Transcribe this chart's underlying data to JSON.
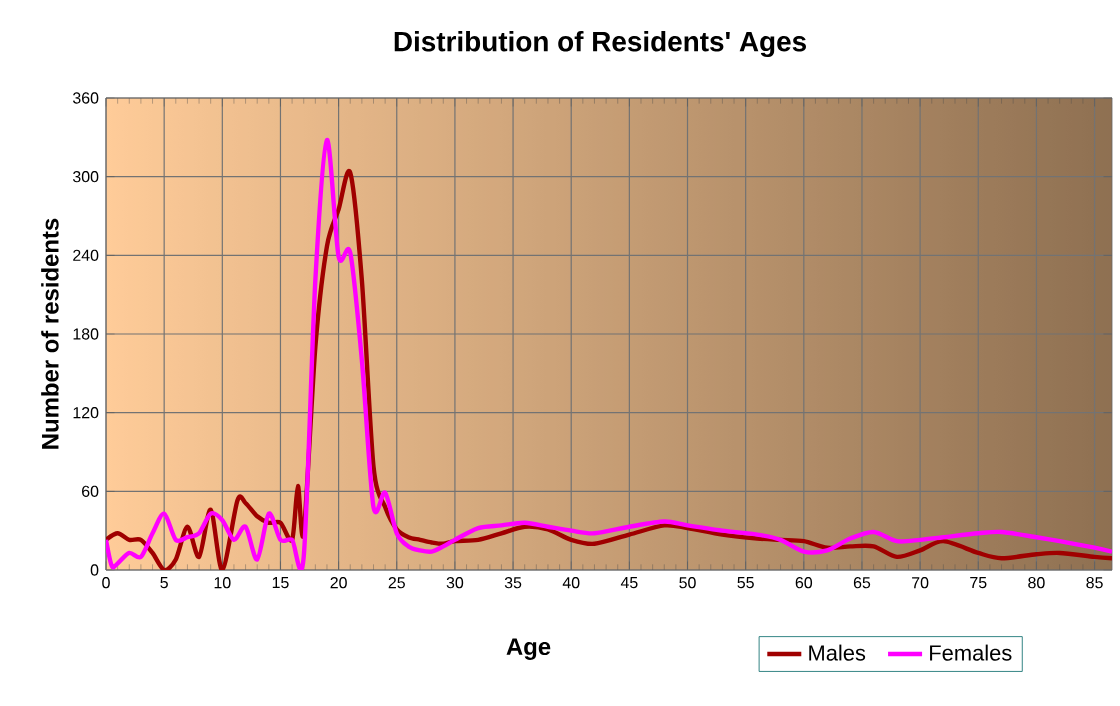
{
  "chart_data": {
    "type": "line",
    "title": "Distribution of Residents' Ages",
    "xlabel": "Age",
    "ylabel": "Number of residents",
    "xlim": [
      0,
      86.5
    ],
    "ylim": [
      0,
      360
    ],
    "xticks": [
      0,
      5,
      10,
      15,
      20,
      25,
      30,
      35,
      40,
      45,
      50,
      55,
      60,
      65,
      70,
      75,
      80,
      85
    ],
    "yticks": [
      0,
      60,
      120,
      180,
      240,
      300,
      360
    ],
    "grid": true,
    "legend": "bottom right",
    "series": [
      {
        "name": "Males",
        "color": "#a00000",
        "x": [
          0,
          1,
          2,
          3,
          4,
          5,
          6,
          7,
          8,
          9,
          10,
          11.3,
          12,
          13,
          14,
          15,
          16,
          16.5,
          17,
          18,
          19,
          20,
          21,
          22,
          23,
          24,
          25,
          26,
          27,
          28,
          29,
          30,
          32,
          34,
          36,
          38,
          40,
          42,
          45,
          48,
          50,
          53,
          56,
          58,
          60,
          62,
          64,
          66,
          68,
          70,
          72,
          75,
          77,
          80,
          82,
          85,
          86.5
        ],
        "values": [
          23,
          28,
          23,
          23,
          13,
          0,
          8,
          33,
          10,
          46,
          0,
          53,
          51,
          41,
          36,
          36,
          23,
          64,
          28,
          170,
          247,
          275,
          303,
          221,
          79,
          48,
          31,
          25,
          23,
          21,
          20,
          22,
          23,
          28,
          33,
          31,
          23,
          20,
          27,
          34,
          32,
          27,
          24,
          23,
          22,
          17,
          18,
          18,
          10,
          15,
          22,
          13,
          9,
          12,
          13,
          10,
          9
        ]
      },
      {
        "name": "Females",
        "color": "#ff00ff",
        "x": [
          0,
          0.5,
          1,
          2,
          3,
          4,
          5,
          6,
          7,
          8,
          9,
          10,
          11,
          12,
          13,
          14,
          15,
          16,
          17,
          18,
          19,
          20,
          21,
          22,
          23,
          24,
          25,
          26,
          27,
          28,
          29,
          30,
          32,
          34,
          36,
          38,
          40,
          42,
          45,
          48,
          50,
          53,
          56,
          58,
          60,
          62,
          64,
          66,
          68,
          70,
          72,
          75,
          77,
          80,
          82,
          85,
          86.5
        ],
        "values": [
          23,
          3,
          5,
          13,
          10,
          28,
          43,
          23,
          25,
          28,
          43,
          38,
          23,
          33,
          8,
          43,
          23,
          23,
          10,
          221,
          328,
          239,
          242,
          160,
          48,
          59,
          28,
          18,
          15,
          14,
          18,
          23,
          32,
          34,
          36,
          33,
          30,
          28,
          33,
          37,
          34,
          30,
          27,
          23,
          14,
          15,
          24,
          29,
          22,
          23,
          25,
          28,
          29,
          25,
          22,
          17,
          14
        ]
      }
    ]
  }
}
